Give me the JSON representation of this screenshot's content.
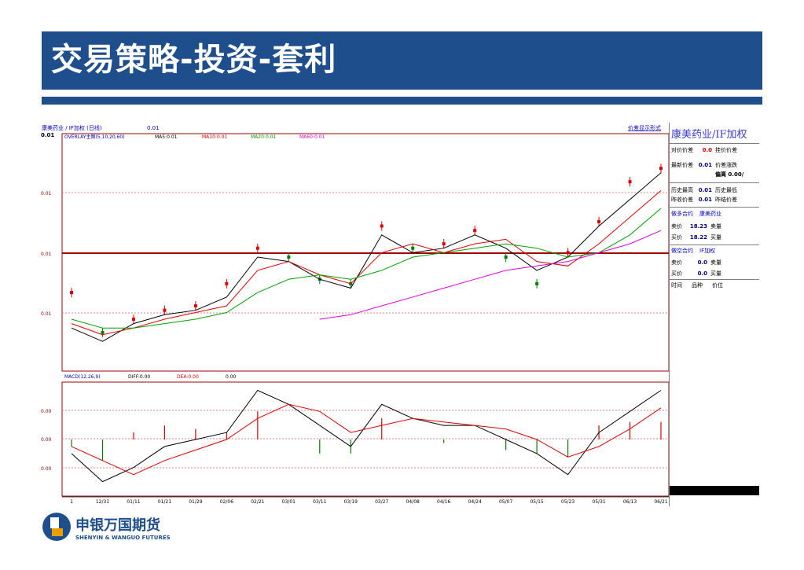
{
  "slide": {
    "title": "交易策略-投资-套利"
  },
  "chart_window": {
    "caption": "康美药业 / IF加权 (日线)",
    "caption_value": "0.01",
    "mode_link": "价差显示形式",
    "axis_top_label": "0.01",
    "overlay_legend": {
      "label": "OVERLAY主图(5,10,20,60)",
      "ma5": "MA5:0.01",
      "ma10": "MA10:0.01",
      "ma20": "MA20:0.01",
      "ma60": "MA60:0.01"
    },
    "price_axis_labels": [
      "0.01",
      "0.01",
      "0.01"
    ],
    "macd_legend": {
      "label": "MACD(12,26,9)",
      "diff": "DIFF:0.00",
      "dea": "DEA:0.00",
      "macd": "0.00"
    },
    "macd_axis_labels": [
      "0.00",
      "0.00",
      "0.00"
    ],
    "date_labels": [
      "1",
      "12/31",
      "01/11",
      "01/21",
      "01/29",
      "02/06",
      "02/21",
      "03/01",
      "03/11",
      "03/19",
      "03/27",
      "04/08",
      "04/16",
      "04/24",
      "05/07",
      "05/15",
      "05/23",
      "05/31",
      "06/13",
      "06/21"
    ],
    "colors": {
      "ma5": "#000000",
      "ma10": "#e00000",
      "ma20": "#00a000",
      "ma60": "#e000e0",
      "up_candle": "#e00000",
      "down_candle": "#008000",
      "baseline": "#a00000"
    }
  },
  "chart_data": {
    "type": "line",
    "title": "康美药业 / IF加权 (日线)",
    "x": [
      "1",
      "12/31",
      "01/11",
      "01/21",
      "01/29",
      "02/06",
      "02/21",
      "03/01",
      "03/11",
      "03/19",
      "03/27",
      "04/08",
      "04/16",
      "04/24",
      "05/07",
      "05/15",
      "05/23",
      "05/31",
      "06/13",
      "06/21"
    ],
    "series": [
      {
        "name": "MA5",
        "values": [
          38,
          32,
          40,
          44,
          46,
          52,
          70,
          68,
          60,
          56,
          80,
          72,
          74,
          80,
          74,
          64,
          70,
          84,
          96,
          108
        ]
      },
      {
        "name": "MA10",
        "values": [
          40,
          35,
          38,
          42,
          45,
          48,
          64,
          68,
          62,
          58,
          72,
          76,
          72,
          76,
          78,
          68,
          66,
          76,
          88,
          100
        ]
      },
      {
        "name": "MA20",
        "values": [
          42,
          38,
          38,
          40,
          42,
          45,
          54,
          60,
          62,
          60,
          64,
          70,
          72,
          74,
          76,
          74,
          70,
          72,
          80,
          92
        ]
      },
      {
        "name": "MA60",
        "values": [
          null,
          null,
          null,
          null,
          null,
          null,
          null,
          null,
          42,
          44,
          48,
          52,
          56,
          60,
          64,
          66,
          68,
          72,
          76,
          82
        ]
      }
    ],
    "price_points": [
      {
        "x": "1",
        "c": 54
      },
      {
        "x": "12/31",
        "c": 36
      },
      {
        "x": "01/11",
        "c": 42
      },
      {
        "x": "01/21",
        "c": 46
      },
      {
        "x": "01/29",
        "c": 48
      },
      {
        "x": "02/06",
        "c": 58
      },
      {
        "x": "02/21",
        "c": 74
      },
      {
        "x": "03/01",
        "c": 70
      },
      {
        "x": "03/11",
        "c": 60
      },
      {
        "x": "03/19",
        "c": 58
      },
      {
        "x": "03/27",
        "c": 84
      },
      {
        "x": "04/08",
        "c": 74
      },
      {
        "x": "04/16",
        "c": 76
      },
      {
        "x": "04/24",
        "c": 82
      },
      {
        "x": "05/07",
        "c": 70
      },
      {
        "x": "05/15",
        "c": 58
      },
      {
        "x": "05/23",
        "c": 72
      },
      {
        "x": "05/31",
        "c": 86
      },
      {
        "x": "06/13",
        "c": 104
      },
      {
        "x": "06/21",
        "c": 110
      }
    ],
    "ylim": [
      20,
      120
    ],
    "macd": {
      "diff": [
        -4,
        -12,
        -8,
        -2,
        0,
        2,
        14,
        10,
        4,
        -2,
        10,
        6,
        4,
        4,
        0,
        -4,
        -10,
        2,
        8,
        14
      ],
      "dea": [
        -2,
        -6,
        -10,
        -6,
        -3,
        0,
        6,
        10,
        8,
        2,
        4,
        6,
        5,
        4,
        3,
        0,
        -5,
        -2,
        3,
        9
      ],
      "bars": [
        -2,
        -6,
        2,
        4,
        3,
        2,
        8,
        0,
        -4,
        -4,
        6,
        0,
        -1,
        0,
        -3,
        -4,
        -5,
        4,
        5,
        5
      ],
      "ylim": [
        -15,
        15
      ]
    }
  },
  "side_panel": {
    "title": "康美药业/IF加权",
    "rows_top": [
      {
        "k": "对价价差",
        "v": "0.0",
        "k2": "挂价价差",
        "red": true
      },
      {
        "k": "最新价差",
        "v": "0.01",
        "k2": "价差涨跌"
      },
      {
        "k": "",
        "v": "",
        "k2": "偏离 0.00/"
      }
    ],
    "rows_hist": [
      {
        "k": "历史最高",
        "v": "0.01",
        "k2": "历史最低"
      },
      {
        "k": "昨收价差",
        "v": "0.01",
        "k2": "昨结价差"
      }
    ],
    "long_leg": {
      "head": "做多合约",
      "name": "康美药业",
      "sell_label": "卖价",
      "sell": "18.23",
      "sell_qty_label": "卖量",
      "buy_label": "买价",
      "buy": "18.22",
      "buy_qty_label": "买量"
    },
    "short_leg": {
      "head": "做空合约",
      "name": "IF加权",
      "sell_label": "卖价",
      "sell": "0.0",
      "sell_qty_label": "卖量",
      "buy_label": "买价",
      "buy": "0.0",
      "buy_qty_label": "买量"
    },
    "table_headers": [
      "时间",
      "品种",
      "价位"
    ]
  },
  "logo": {
    "cn": "申银万国期货",
    "en": "SHENYIN & WANGUO FUTURES"
  }
}
